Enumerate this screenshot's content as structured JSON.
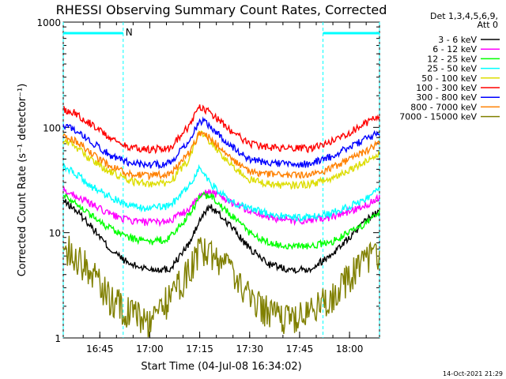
{
  "chart_data": {
    "type": "line",
    "title": "RHESSI Observing Summary Count Rates, Corrected",
    "xlabel": "Start Time (04-Jul-08 16:34:02)",
    "ylabel": "Corrected Count Rate (s⁻¹ detector⁻¹)",
    "ylog": true,
    "ylim": [
      1,
      1000
    ],
    "xlim": [
      16.567,
      18.15
    ],
    "x_ticks": [
      {
        "x": 16.75,
        "label": "16:45"
      },
      {
        "x": 17.0,
        "label": "17:00"
      },
      {
        "x": 17.25,
        "label": "17:15"
      },
      {
        "x": 17.5,
        "label": "17:30"
      },
      {
        "x": 17.75,
        "label": "17:45"
      },
      {
        "x": 18.0,
        "label": "18:00"
      }
    ],
    "y_ticks": [
      {
        "y": 1,
        "label": "1"
      },
      {
        "y": 10,
        "label": "10"
      },
      {
        "y": 100,
        "label": "100"
      },
      {
        "y": 1000,
        "label": "1000"
      }
    ],
    "legend_header": [
      "Det 1,3,4,5,6,9,",
      "Att 0"
    ],
    "legend_position": "right",
    "night_flag": {
      "label": "N",
      "intervals": [
        [
          16.567,
          16.867
        ],
        [
          17.867,
          18.15
        ]
      ],
      "color": "#00ffff"
    },
    "series": [
      {
        "name": "3 - 6 keV",
        "color": "#000000",
        "x": [
          16.567,
          16.62,
          16.7,
          16.8,
          16.9,
          17.0,
          17.1,
          17.2,
          17.25,
          17.3,
          17.4,
          17.5,
          17.6,
          17.7,
          17.8,
          17.9,
          18.0,
          18.1,
          18.15
        ],
        "y": [
          20,
          17,
          12,
          7,
          5,
          4.5,
          4.5,
          8,
          13,
          18,
          12,
          7,
          5,
          4.5,
          4.5,
          6,
          9,
          14,
          16
        ]
      },
      {
        "name": "6 - 12 keV",
        "color": "#ff00ff",
        "x": [
          16.567,
          16.62,
          16.7,
          16.8,
          16.9,
          17.0,
          17.1,
          17.2,
          17.25,
          17.3,
          17.4,
          17.5,
          17.6,
          17.7,
          17.8,
          17.9,
          18.0,
          18.1,
          18.15
        ],
        "y": [
          25,
          23,
          19,
          15,
          13,
          12.5,
          13,
          17,
          22,
          25,
          20,
          16,
          14,
          13,
          13,
          14,
          16,
          19,
          22
        ]
      },
      {
        "name": "12 - 25 keV",
        "color": "#00ff00",
        "x": [
          16.567,
          16.62,
          16.7,
          16.8,
          16.9,
          17.0,
          17.1,
          17.2,
          17.25,
          17.3,
          17.4,
          17.5,
          17.6,
          17.7,
          17.8,
          17.9,
          18.0,
          18.1,
          18.15
        ],
        "y": [
          23,
          20,
          15,
          11,
          9,
          8,
          9,
          15,
          22,
          23,
          15,
          10,
          8,
          7.5,
          7.5,
          8,
          10,
          13,
          16
        ]
      },
      {
        "name": "25 - 50 keV",
        "color": "#00ffff",
        "x": [
          16.567,
          16.62,
          16.7,
          16.8,
          16.9,
          17.0,
          17.1,
          17.2,
          17.25,
          17.3,
          17.4,
          17.5,
          17.6,
          17.7,
          17.8,
          17.9,
          18.0,
          18.1,
          18.15
        ],
        "y": [
          42,
          38,
          28,
          22,
          18,
          17,
          18,
          28,
          42,
          30,
          20,
          17,
          15,
          14,
          14,
          15,
          18,
          22,
          26
        ]
      },
      {
        "name": "50 - 100 keV",
        "color": "#dddd00",
        "x": [
          16.567,
          16.62,
          16.7,
          16.8,
          16.9,
          17.0,
          17.1,
          17.2,
          17.25,
          17.3,
          17.4,
          17.5,
          17.6,
          17.7,
          17.8,
          17.9,
          18.0,
          18.1,
          18.15
        ],
        "y": [
          75,
          68,
          50,
          38,
          31,
          29,
          30,
          50,
          90,
          75,
          45,
          32,
          29,
          28,
          29,
          32,
          40,
          50,
          55
        ]
      },
      {
        "name": "100 - 300 keV",
        "color": "#ff0000",
        "x": [
          16.567,
          16.62,
          16.7,
          16.8,
          16.9,
          17.0,
          17.1,
          17.2,
          17.25,
          17.3,
          17.4,
          17.5,
          17.6,
          17.7,
          17.8,
          17.9,
          18.0,
          18.1,
          18.15
        ],
        "y": [
          148,
          140,
          110,
          80,
          64,
          62,
          64,
          105,
          158,
          140,
          95,
          70,
          64,
          63,
          63,
          72,
          90,
          115,
          130
        ]
      },
      {
        "name": "300 - 800 keV",
        "color": "#0000ff",
        "x": [
          16.567,
          16.62,
          16.7,
          16.8,
          16.9,
          17.0,
          17.1,
          17.2,
          17.25,
          17.3,
          17.4,
          17.5,
          17.6,
          17.7,
          17.8,
          17.9,
          18.0,
          18.1,
          18.15
        ],
        "y": [
          103,
          98,
          75,
          55,
          46,
          44,
          46,
          75,
          118,
          105,
          68,
          50,
          46,
          45,
          45,
          52,
          66,
          80,
          90
        ]
      },
      {
        "name": "800 - 7000 keV",
        "color": "#ff8000",
        "x": [
          16.567,
          16.62,
          16.7,
          16.8,
          16.9,
          17.0,
          17.1,
          17.2,
          17.25,
          17.3,
          17.4,
          17.5,
          17.6,
          17.7,
          17.8,
          17.9,
          18.0,
          18.1,
          18.15
        ],
        "y": [
          82,
          76,
          58,
          43,
          36,
          35,
          36,
          58,
          90,
          80,
          52,
          38,
          36,
          35,
          35,
          40,
          50,
          62,
          72
        ]
      },
      {
        "name": "7000 - 15000 keV",
        "color": "#808000",
        "x": [
          16.567,
          16.62,
          16.7,
          16.8,
          16.9,
          17.0,
          17.1,
          17.2,
          17.25,
          17.3,
          17.4,
          17.5,
          17.6,
          17.7,
          17.8,
          17.9,
          18.0,
          18.1,
          18.15
        ],
        "y": [
          7.5,
          6.5,
          4.5,
          2.5,
          1.8,
          1.5,
          2.5,
          4.5,
          7,
          6.5,
          4.5,
          2.5,
          1.8,
          1.5,
          1.8,
          2.5,
          4,
          6,
          7
        ]
      }
    ]
  },
  "footer": {
    "timestamp": "14-Oct-2021 21:29"
  }
}
